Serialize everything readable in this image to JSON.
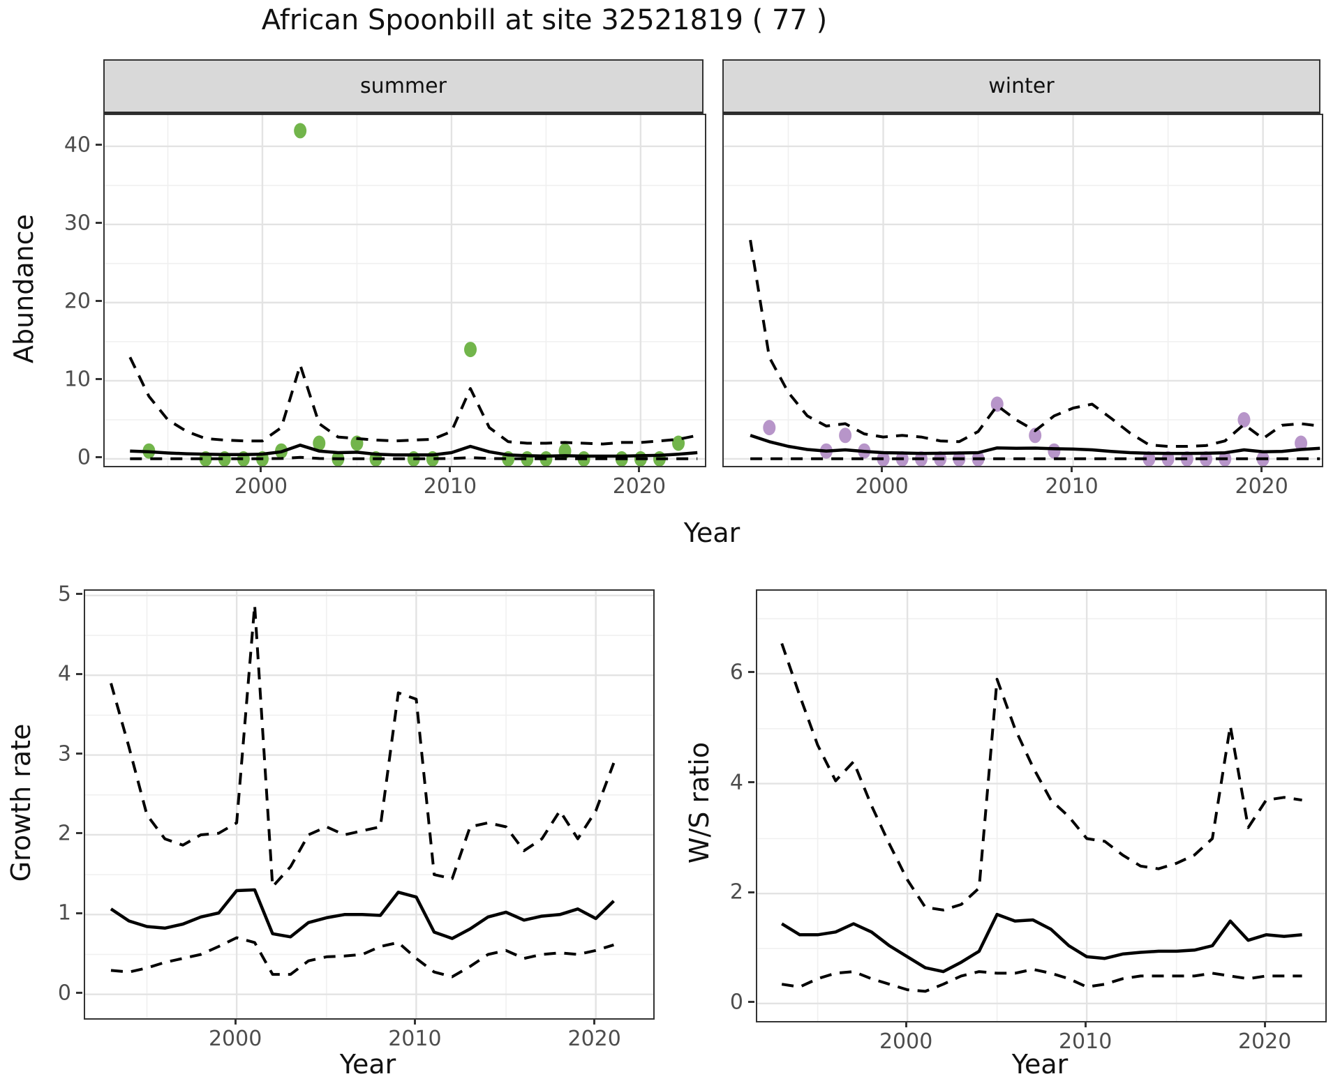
{
  "title": "African Spoonbill at site 32521819 ( 77 )",
  "colors": {
    "summer_point": "#72b54b",
    "winter_point": "#b795c9",
    "line": "#000000",
    "grid_major": "#e3e3e3",
    "grid_minor": "#f0f0f0",
    "panel_border": "#333333",
    "strip_bg": "#d9d9d9",
    "tick_text": "#4d4d4d"
  },
  "chart_data": [
    {
      "id": "abundance_summer",
      "type": "scatter",
      "facet": "summer",
      "xlabel": "Year",
      "ylabel": "Abundance",
      "xlim": [
        1991.66,
        2023.4
      ],
      "ylim": [
        -0.9,
        44.0
      ],
      "x_major_ticks": [
        2000,
        2010,
        2020
      ],
      "x_minor_ticks": [
        1995,
        2005,
        2015
      ],
      "y_major_ticks": [
        0,
        10,
        20,
        30,
        40
      ],
      "y_minor_ticks": [
        5,
        15,
        25,
        35
      ],
      "grid": true,
      "legend": "none",
      "point_color": "#72b54b",
      "points": {
        "years": [
          1994,
          1997,
          1998,
          1999,
          2000,
          2001,
          2002,
          2003,
          2004,
          2005,
          2006,
          2008,
          2009,
          2011,
          2013,
          2014,
          2015,
          2016,
          2017,
          2019,
          2020,
          2021,
          2022
        ],
        "values": [
          1,
          0,
          0,
          0,
          0,
          1,
          42,
          2,
          0,
          2,
          0,
          0,
          0,
          14,
          0,
          0,
          0,
          1,
          0,
          0,
          0,
          0,
          2
        ]
      },
      "fit": {
        "years": [
          1993,
          1994,
          1995,
          1996,
          1997,
          1998,
          1999,
          2000,
          2001,
          2002,
          2003,
          2004,
          2005,
          2006,
          2007,
          2008,
          2009,
          2010,
          2011,
          2012,
          2013,
          2014,
          2015,
          2016,
          2017,
          2018,
          2019,
          2020,
          2021,
          2022,
          2023
        ],
        "median": [
          1.0,
          0.9,
          0.75,
          0.65,
          0.6,
          0.55,
          0.55,
          0.6,
          0.9,
          1.75,
          1.0,
          0.8,
          0.85,
          0.6,
          0.5,
          0.5,
          0.5,
          0.8,
          1.6,
          0.9,
          0.5,
          0.4,
          0.35,
          0.4,
          0.35,
          0.35,
          0.35,
          0.4,
          0.45,
          0.6,
          0.8
        ],
        "upper": [
          13,
          8,
          5,
          3.5,
          2.6,
          2.4,
          2.3,
          2.3,
          4,
          12,
          4.5,
          2.8,
          2.6,
          2.4,
          2.3,
          2.4,
          2.5,
          3.5,
          9,
          4,
          2.2,
          2.0,
          2.0,
          2.1,
          2.0,
          1.9,
          2.1,
          2.1,
          2.3,
          2.5,
          3.0
        ],
        "lower": [
          0.02,
          0.02,
          0.02,
          0.02,
          0.02,
          0.02,
          0.02,
          0.02,
          0.05,
          0.2,
          0.05,
          0.02,
          0.02,
          0.02,
          0.02,
          0.02,
          0.02,
          0.05,
          0.15,
          0.05,
          0.02,
          0.02,
          0.02,
          0.02,
          0.02,
          0.02,
          0.02,
          0.02,
          0.02,
          0.02,
          0.02
        ]
      }
    },
    {
      "id": "abundance_winter",
      "type": "scatter",
      "facet": "winter",
      "xlabel": "Year",
      "ylabel": "Abundance",
      "xlim": [
        1991.6,
        2023.1
      ],
      "ylim": [
        -0.9,
        44.0
      ],
      "x_major_ticks": [
        2000,
        2010,
        2020
      ],
      "x_minor_ticks": [
        1995,
        2005,
        2015
      ],
      "y_major_ticks": [
        0,
        10,
        20,
        30,
        40
      ],
      "y_minor_ticks": [
        5,
        15,
        25,
        35
      ],
      "grid": true,
      "legend": "none",
      "point_color": "#b795c9",
      "points": {
        "years": [
          1994,
          1997,
          1998,
          1999,
          2000,
          2001,
          2002,
          2003,
          2004,
          2005,
          2006,
          2008,
          2009,
          2014,
          2015,
          2016,
          2017,
          2018,
          2019,
          2020,
          2022
        ],
        "values": [
          4,
          1,
          3,
          1,
          0,
          0,
          0,
          0,
          0,
          0,
          7,
          3,
          1,
          0,
          0,
          0,
          0,
          0,
          5,
          0,
          2
        ]
      },
      "fit": {
        "years": [
          1993,
          1994,
          1995,
          1996,
          1997,
          1998,
          1999,
          2000,
          2001,
          2002,
          2003,
          2004,
          2005,
          2006,
          2007,
          2008,
          2009,
          2010,
          2011,
          2012,
          2013,
          2014,
          2015,
          2016,
          2017,
          2018,
          2019,
          2020,
          2021,
          2022,
          2023
        ],
        "median": [
          3.0,
          2.2,
          1.6,
          1.2,
          1.0,
          1.15,
          0.95,
          0.8,
          0.75,
          0.7,
          0.72,
          0.75,
          0.8,
          1.4,
          1.35,
          1.38,
          1.3,
          1.25,
          1.15,
          0.95,
          0.8,
          0.72,
          0.7,
          0.7,
          0.72,
          0.78,
          1.15,
          0.9,
          0.95,
          1.2,
          1.35
        ],
        "upper": [
          28,
          13,
          8.5,
          5.5,
          4.2,
          4.5,
          3.2,
          2.8,
          3.0,
          2.8,
          2.3,
          2.2,
          3.5,
          6.8,
          5.0,
          3.6,
          5.5,
          6.5,
          7.0,
          5.2,
          3.3,
          1.8,
          1.6,
          1.6,
          1.7,
          2.3,
          4.4,
          2.6,
          4.3,
          4.5,
          4.2
        ],
        "lower": [
          0.02,
          0.02,
          0.02,
          0.02,
          0.02,
          0.02,
          0.02,
          0.02,
          0.02,
          0.02,
          0.02,
          0.02,
          0.02,
          0.02,
          0.02,
          0.02,
          0.02,
          0.02,
          0.02,
          0.02,
          0.02,
          0.02,
          0.02,
          0.02,
          0.02,
          0.02,
          0.02,
          0.02,
          0.02,
          0.02,
          0.02
        ]
      }
    },
    {
      "id": "growth_rate",
      "type": "line",
      "facet": "",
      "xlabel": "Year",
      "ylabel": "Growth rate",
      "xlim": [
        1991.56,
        2023.2
      ],
      "ylim": [
        -0.3,
        5.06
      ],
      "x_major_ticks": [
        2000,
        2010,
        2020
      ],
      "x_minor_ticks": [
        1995,
        2005,
        2015
      ],
      "y_major_ticks": [
        0,
        1,
        2,
        3,
        4,
        5
      ],
      "y_minor_ticks": [
        0.5,
        1.5,
        2.5,
        3.5,
        4.5
      ],
      "grid": true,
      "legend": "none",
      "point_color": "",
      "points": {
        "years": [],
        "values": []
      },
      "fit": {
        "years": [
          1993,
          1994,
          1995,
          1996,
          1997,
          1998,
          1999,
          2000,
          2001,
          2002,
          2003,
          2004,
          2005,
          2006,
          2007,
          2008,
          2009,
          2010,
          2011,
          2012,
          2013,
          2014,
          2015,
          2016,
          2017,
          2018,
          2019,
          2020,
          2021
        ],
        "median": [
          1.07,
          0.92,
          0.85,
          0.83,
          0.88,
          0.97,
          1.02,
          1.3,
          1.31,
          0.76,
          0.72,
          0.9,
          0.96,
          1.0,
          1.0,
          0.99,
          1.28,
          1.22,
          0.78,
          0.7,
          0.82,
          0.97,
          1.03,
          0.93,
          0.98,
          1.0,
          1.07,
          0.95,
          1.17
        ],
        "upper": [
          3.9,
          3.1,
          2.25,
          1.95,
          1.87,
          2.0,
          2.02,
          2.15,
          4.88,
          1.35,
          1.6,
          2.0,
          2.1,
          2.0,
          2.05,
          2.1,
          3.78,
          3.7,
          1.5,
          1.45,
          2.1,
          2.15,
          2.1,
          1.8,
          1.95,
          2.3,
          1.95,
          2.3,
          2.9
        ],
        "lower": [
          0.3,
          0.28,
          0.33,
          0.4,
          0.45,
          0.5,
          0.6,
          0.71,
          0.65,
          0.25,
          0.25,
          0.42,
          0.47,
          0.48,
          0.5,
          0.6,
          0.65,
          0.45,
          0.28,
          0.22,
          0.35,
          0.5,
          0.55,
          0.45,
          0.5,
          0.52,
          0.5,
          0.55,
          0.62
        ]
      }
    },
    {
      "id": "ws_ratio",
      "type": "line",
      "facet": "",
      "xlabel": "Year",
      "ylabel": "W/S ratio",
      "xlim": [
        1991.63,
        2023.3
      ],
      "ylim": [
        -0.32,
        7.51
      ],
      "x_major_ticks": [
        2000,
        2010,
        2020
      ],
      "x_minor_ticks": [
        1995,
        2005,
        2015
      ],
      "y_major_ticks": [
        0,
        2,
        4,
        6
      ],
      "y_minor_ticks": [
        1,
        3,
        5,
        7
      ],
      "grid": true,
      "legend": "none",
      "point_color": "",
      "points": {
        "years": [],
        "values": []
      },
      "fit": {
        "years": [
          1993,
          1994,
          1995,
          1996,
          1997,
          1998,
          1999,
          2000,
          2001,
          2002,
          2003,
          2004,
          2005,
          2006,
          2007,
          2008,
          2009,
          2010,
          2011,
          2012,
          2013,
          2014,
          2015,
          2016,
          2017,
          2018,
          2019,
          2020,
          2021,
          2022
        ],
        "median": [
          1.45,
          1.25,
          1.25,
          1.3,
          1.45,
          1.3,
          1.05,
          0.85,
          0.65,
          0.58,
          0.75,
          0.95,
          1.62,
          1.5,
          1.52,
          1.35,
          1.05,
          0.85,
          0.82,
          0.9,
          0.93,
          0.95,
          0.95,
          0.97,
          1.05,
          1.5,
          1.15,
          1.25,
          1.22,
          1.25
        ],
        "upper": [
          6.55,
          5.6,
          4.7,
          4.05,
          4.4,
          3.6,
          2.9,
          2.25,
          1.75,
          1.7,
          1.8,
          2.1,
          5.9,
          5.0,
          4.3,
          3.7,
          3.4,
          3.0,
          2.95,
          2.7,
          2.5,
          2.45,
          2.55,
          2.7,
          3.0,
          5.05,
          3.2,
          3.7,
          3.75,
          3.7
        ],
        "lower": [
          0.35,
          0.3,
          0.45,
          0.55,
          0.58,
          0.45,
          0.35,
          0.25,
          0.22,
          0.35,
          0.5,
          0.58,
          0.55,
          0.55,
          0.62,
          0.55,
          0.45,
          0.3,
          0.35,
          0.45,
          0.5,
          0.5,
          0.5,
          0.5,
          0.55,
          0.5,
          0.45,
          0.5,
          0.5,
          0.5
        ]
      }
    }
  ]
}
